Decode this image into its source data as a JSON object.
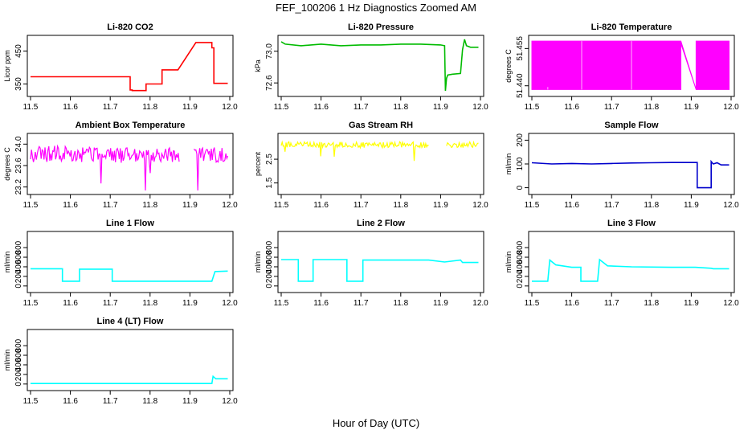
{
  "figure": {
    "title": "FEF_100206  1 Hz Diagnostics Zoomed AM",
    "xlabel": "Hour of Day (UTC)"
  },
  "chart_data": [
    {
      "type": "line",
      "title": "Li-820 CO2",
      "ylabel": "Licor ppm",
      "color": "#ff0000",
      "xlim": [
        11.5,
        12.0
      ],
      "ylim": [
        322,
        488
      ],
      "xticks": [
        "11.5",
        "11.6",
        "11.7",
        "11.8",
        "11.9",
        "12.0"
      ],
      "yticks": [
        "350",
        "450"
      ],
      "series": [
        {
          "x": [
            11.5,
            11.75,
            11.75,
            11.755,
            11.755,
            11.79,
            11.79,
            11.83,
            11.83,
            11.87,
            11.915,
            11.955,
            11.955,
            11.96,
            11.96,
            11.995
          ],
          "y": [
            372,
            372,
            332,
            332,
            330,
            330,
            350,
            350,
            393,
            393,
            476,
            476,
            460,
            460,
            352,
            352
          ]
        }
      ]
    },
    {
      "type": "line",
      "title": "Li-820 Pressure",
      "ylabel": "kPa",
      "color": "#00bb00",
      "xlim": [
        11.5,
        12.0
      ],
      "ylim": [
        72.47,
        73.16
      ],
      "xticks": [
        "11.5",
        "11.6",
        "11.7",
        "11.8",
        "11.9",
        "12.0"
      ],
      "yticks": [
        "72.6",
        "73.0"
      ],
      "series": [
        {
          "x": [
            11.5,
            11.51,
            11.55,
            11.6,
            11.65,
            11.7,
            11.75,
            11.8,
            11.85,
            11.9,
            11.91,
            11.912,
            11.915,
            11.918,
            11.93,
            11.95,
            11.955,
            11.96,
            11.965,
            11.975,
            11.995
          ],
          "y": [
            73.12,
            73.09,
            73.07,
            73.09,
            73.07,
            73.08,
            73.08,
            73.09,
            73.09,
            73.08,
            73.07,
            72.5,
            72.66,
            72.7,
            72.71,
            72.72,
            73.02,
            73.15,
            73.07,
            73.05,
            73.05
          ]
        }
      ]
    },
    {
      "type": "area",
      "title": "Li-820 Temperature",
      "ylabel": "degrees C",
      "color": "#ff00ff",
      "xlim": [
        11.5,
        12.0
      ],
      "ylim": [
        51.437,
        51.459
      ],
      "xticks": [
        "11.5",
        "11.6",
        "11.7",
        "11.8",
        "11.9",
        "12.0"
      ],
      "yticks": [
        "51.440",
        "51.455"
      ],
      "series": [
        {
          "x": [
            11.5,
            11.874,
            11.874,
            11.912,
            11.912,
            11.995
          ],
          "low": [
            51.4385,
            51.4385,
            51.457,
            51.4385,
            51.4385,
            51.4385
          ],
          "high": [
            51.458,
            51.458,
            51.458,
            51.4385,
            51.458,
            51.458
          ]
        }
      ]
    },
    {
      "type": "line",
      "title": "Ambient Box Temperature",
      "ylabel": "degrees C",
      "color": "#ff00ff",
      "xlim": [
        11.5,
        12.0
      ],
      "ylim": [
        23.12,
        24.14
      ],
      "xticks": [
        "11.5",
        "11.6",
        "11.7",
        "11.8",
        "11.9",
        "12.0"
      ],
      "yticks": [
        "23.2",
        "23.6",
        "24.0"
      ],
      "series": [
        {
          "x": [
            11.5,
            11.53,
            11.56,
            11.6,
            11.65,
            11.7,
            11.75,
            11.8,
            11.85,
            11.873,
            11.873,
            11.91,
            11.91,
            11.95,
            11.995
          ],
          "y": [
            23.82,
            23.8,
            23.82,
            23.8,
            23.82,
            23.8,
            23.8,
            23.8,
            23.82,
            23.8,
            null,
            null,
            23.82,
            23.82,
            23.8
          ]
        }
      ],
      "band": {
        "spread": 0.15,
        "segments": [
          [
            11.5,
            11.873
          ],
          [
            11.91,
            11.995
          ]
        ]
      }
    },
    {
      "type": "line",
      "title": "Gas Stream RH",
      "ylabel": "percent",
      "color": "#ffff00",
      "xlim": [
        11.5,
        12.0
      ],
      "ylim": [
        1.15,
        3.45
      ],
      "xticks": [
        "11.5",
        "11.6",
        "11.7",
        "11.8",
        "11.9",
        "12.0"
      ],
      "yticks": [
        "1.5",
        "2.5"
      ],
      "series": [
        {
          "x": [
            11.5,
            11.55,
            11.6,
            11.65,
            11.7,
            11.75,
            11.8,
            11.85,
            11.87,
            11.9,
            11.91,
            11.915,
            11.92,
            11.95,
            11.995
          ],
          "y": [
            3.1,
            3.15,
            3.1,
            3.12,
            3.1,
            3.1,
            3.12,
            3.1,
            3.08,
            2.95,
            3.0,
            3.1,
            3.08,
            3.1,
            3.12
          ]
        }
      ],
      "band": {
        "spread": 0.12,
        "segments": [
          [
            11.5,
            11.87
          ],
          [
            11.915,
            11.995
          ]
        ]
      }
    },
    {
      "type": "line",
      "title": "Sample Flow",
      "ylabel": "ml/min",
      "color": "#0000cc",
      "xlim": [
        11.5,
        12.0
      ],
      "ylim": [
        -15,
        215
      ],
      "xticks": [
        "11.5",
        "11.6",
        "11.7",
        "11.8",
        "11.9",
        "12.0"
      ],
      "yticks": [
        "0",
        "100",
        "200"
      ],
      "series": [
        {
          "x": [
            11.5,
            11.55,
            11.6,
            11.65,
            11.7,
            11.75,
            11.8,
            11.85,
            11.915,
            11.915,
            11.95,
            11.95,
            11.955,
            11.965,
            11.975,
            11.995
          ],
          "y": [
            105,
            100,
            102,
            100,
            102,
            104,
            105,
            106,
            106,
            0,
            0,
            110,
            100,
            105,
            96,
            96
          ]
        }
      ]
    },
    {
      "type": "line",
      "title": "Line 1 Flow",
      "ylabel": "ml/min",
      "color": "#00ffff",
      "xlim": [
        11.5,
        12.0
      ],
      "ylim": [
        -70,
        1070
      ],
      "xticks": [
        "11.5",
        "11.6",
        "11.7",
        "11.8",
        "11.9",
        "12.0"
      ],
      "yticks": [
        "0",
        "200",
        "400",
        "600",
        "800"
      ],
      "series": [
        {
          "x": [
            11.5,
            11.58,
            11.58,
            11.623,
            11.623,
            11.705,
            11.705,
            11.955,
            11.963,
            11.995
          ],
          "y": [
            360,
            360,
            100,
            100,
            350,
            350,
            100,
            100,
            300,
            310
          ]
        }
      ]
    },
    {
      "type": "line",
      "title": "Line 2 Flow",
      "ylabel": "ml/min",
      "color": "#00ffff",
      "xlim": [
        11.5,
        12.0
      ],
      "ylim": [
        -70,
        1070
      ],
      "xticks": [
        "11.5",
        "11.6",
        "11.7",
        "11.8",
        "11.9",
        "12.0"
      ],
      "yticks": [
        "0",
        "200",
        "400",
        "600",
        "800"
      ],
      "series": [
        {
          "x": [
            11.5,
            11.543,
            11.543,
            11.58,
            11.58,
            11.665,
            11.665,
            11.705,
            11.705,
            11.87,
            11.91,
            11.95,
            11.955,
            11.995
          ],
          "y": [
            550,
            550,
            100,
            100,
            550,
            550,
            100,
            100,
            540,
            540,
            500,
            540,
            490,
            490
          ]
        }
      ]
    },
    {
      "type": "line",
      "title": "Line 3 Flow",
      "ylabel": "ml/min",
      "color": "#00ffff",
      "xlim": [
        11.5,
        12.0
      ],
      "ylim": [
        -70,
        1070
      ],
      "xticks": [
        "11.5",
        "11.6",
        "11.7",
        "11.8",
        "11.9",
        "12.0"
      ],
      "yticks": [
        "0",
        "200",
        "400",
        "600",
        "800"
      ],
      "series": [
        {
          "x": [
            11.5,
            11.54,
            11.545,
            11.56,
            11.6,
            11.623,
            11.623,
            11.665,
            11.67,
            11.69,
            11.75,
            11.85,
            11.91,
            11.95,
            11.955,
            11.995
          ],
          "y": [
            100,
            100,
            540,
            440,
            390,
            390,
            100,
            100,
            550,
            420,
            400,
            390,
            390,
            370,
            360,
            360
          ]
        }
      ]
    },
    {
      "type": "line",
      "title": "Line 4 (LT) Flow",
      "ylabel": "ml/min",
      "color": "#00ffff",
      "xlim": [
        11.5,
        12.0
      ],
      "ylim": [
        -70,
        1070
      ],
      "xticks": [
        "11.5",
        "11.6",
        "11.7",
        "11.8",
        "11.9",
        "12.0"
      ],
      "yticks": [
        "0",
        "200",
        "400",
        "600",
        "800"
      ],
      "series": [
        {
          "x": [
            11.5,
            11.955,
            11.958,
            11.965,
            11.995
          ],
          "y": [
            10,
            10,
            160,
            110,
            110
          ]
        }
      ]
    }
  ]
}
